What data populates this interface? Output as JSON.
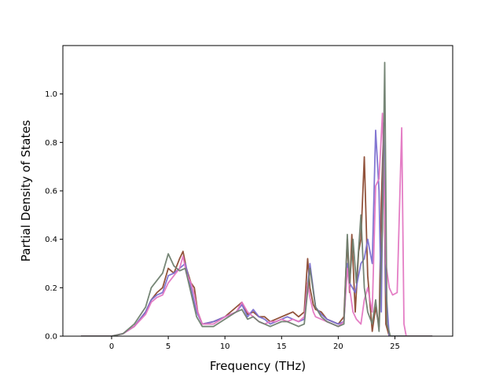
{
  "chart_data": {
    "type": "line",
    "title": "",
    "xlabel": "Frequency (THz)",
    "ylabel": "Partial Density of States",
    "xlim": [
      -4.3,
      30.1
    ],
    "ylim": [
      0.0,
      1.2
    ],
    "xticks": [
      0,
      5,
      10,
      15,
      20,
      25
    ],
    "yticks": [
      0.0,
      0.2,
      0.4,
      0.6,
      0.8,
      1.0
    ],
    "xtick_labels": [
      "0",
      "5",
      "10",
      "15",
      "20",
      "25"
    ],
    "ytick_labels": [
      "0.0",
      "0.2",
      "0.4",
      "0.6",
      "0.8",
      "1.0"
    ],
    "grid": false,
    "legend": null,
    "series": [
      {
        "color": "#8c4a32",
        "x": [
          -2.7,
          0,
          1,
          2,
          3,
          3.5,
          4,
          4.5,
          5,
          5.5,
          6,
          6.3,
          6.6,
          7,
          7.3,
          7.6,
          8,
          9,
          10,
          11,
          11.5,
          12,
          12.5,
          13,
          13.5,
          14,
          14.5,
          15,
          15.5,
          16,
          16.5,
          17,
          17.3,
          17.5,
          17.8,
          18,
          18.5,
          19,
          19.5,
          20,
          20.5,
          20.8,
          21,
          21.2,
          21.5,
          21.8,
          22,
          22.3,
          22.6,
          23,
          23.3,
          23.6,
          23.8,
          24,
          24.2,
          24.5,
          28.3
        ],
        "y": [
          0,
          0,
          0.01,
          0.04,
          0.1,
          0.15,
          0.18,
          0.2,
          0.28,
          0.26,
          0.32,
          0.35,
          0.28,
          0.22,
          0.2,
          0.1,
          0.05,
          0.06,
          0.08,
          0.12,
          0.14,
          0.09,
          0.1,
          0.08,
          0.08,
          0.06,
          0.07,
          0.08,
          0.09,
          0.1,
          0.08,
          0.1,
          0.32,
          0.2,
          0.13,
          0.11,
          0.1,
          0.07,
          0.06,
          0.05,
          0.08,
          0.4,
          0.18,
          0.42,
          0.1,
          0.35,
          0.4,
          0.74,
          0.25,
          0.02,
          0.12,
          0.04,
          0.55,
          0.86,
          0.05,
          0,
          0
        ]
      },
      {
        "color": "#7b6fd0",
        "x": [
          -2.7,
          0,
          1,
          2,
          3,
          3.5,
          4,
          4.5,
          5,
          5.5,
          6,
          6.5,
          7,
          7.5,
          8,
          9,
          10,
          11,
          11.5,
          12,
          12.5,
          13,
          13.5,
          14,
          14.5,
          15,
          15.5,
          16,
          16.5,
          17,
          17.5,
          18,
          18.5,
          19,
          19.5,
          20,
          20.5,
          20.8,
          21,
          21.5,
          22,
          22.3,
          22.6,
          23,
          23.3,
          23.6,
          23.8,
          24,
          24.2,
          24.5,
          25,
          28.3
        ],
        "y": [
          0,
          0,
          0.01,
          0.04,
          0.1,
          0.15,
          0.17,
          0.18,
          0.25,
          0.26,
          0.28,
          0.3,
          0.2,
          0.1,
          0.05,
          0.06,
          0.08,
          0.1,
          0.13,
          0.08,
          0.11,
          0.08,
          0.07,
          0.05,
          0.06,
          0.07,
          0.08,
          0.07,
          0.06,
          0.07,
          0.3,
          0.12,
          0.09,
          0.07,
          0.06,
          0.05,
          0.06,
          0.3,
          0.22,
          0.18,
          0.3,
          0.32,
          0.4,
          0.3,
          0.85,
          0.6,
          0.1,
          0.88,
          0.2,
          0,
          0,
          0
        ]
      },
      {
        "color": "#e377c2",
        "x": [
          -2.7,
          0,
          1,
          2,
          3,
          3.5,
          4,
          4.5,
          5,
          5.5,
          6,
          6.3,
          6.6,
          7,
          7.3,
          7.6,
          8,
          9,
          10,
          11,
          11.5,
          12,
          12.5,
          13,
          13.5,
          14,
          14.5,
          15,
          15.5,
          16,
          16.5,
          17,
          17.3,
          17.5,
          17.8,
          18,
          18.5,
          19,
          19.5,
          20,
          20.5,
          20.8,
          21,
          21.3,
          21.6,
          22,
          22.3,
          22.6,
          23,
          23.3,
          23.6,
          23.9,
          24.2,
          24.5,
          24.8,
          25.2,
          25.6,
          25.8,
          26,
          28.3
        ],
        "y": [
          0,
          0,
          0.01,
          0.04,
          0.09,
          0.14,
          0.16,
          0.17,
          0.22,
          0.25,
          0.28,
          0.33,
          0.26,
          0.22,
          0.17,
          0.1,
          0.05,
          0.05,
          0.08,
          0.1,
          0.14,
          0.1,
          0.08,
          0.06,
          0.05,
          0.06,
          0.06,
          0.07,
          0.06,
          0.07,
          0.06,
          0.08,
          0.22,
          0.16,
          0.1,
          0.08,
          0.07,
          0.06,
          0.05,
          0.04,
          0.06,
          0.28,
          0.2,
          0.1,
          0.07,
          0.05,
          0.15,
          0.2,
          0.1,
          0.62,
          0.65,
          0.92,
          0.3,
          0.2,
          0.17,
          0.18,
          0.86,
          0.05,
          0,
          0
        ]
      },
      {
        "color": "#6f7f6f",
        "x": [
          -2.7,
          0,
          1,
          2,
          3,
          3.5,
          4,
          4.5,
          5,
          5.5,
          6,
          6.5,
          7,
          7.5,
          8,
          9,
          10,
          11,
          11.5,
          12,
          12.5,
          13,
          13.5,
          14,
          14.5,
          15,
          15.5,
          16,
          16.5,
          17,
          17.5,
          18,
          18.5,
          19,
          19.5,
          20,
          20.5,
          20.8,
          21,
          21.3,
          21.6,
          22,
          22.3,
          22.6,
          23,
          23.3,
          23.6,
          23.9,
          24.1,
          24.3,
          24.6,
          28.3
        ],
        "y": [
          0,
          0,
          0.01,
          0.05,
          0.12,
          0.2,
          0.23,
          0.26,
          0.34,
          0.29,
          0.27,
          0.28,
          0.18,
          0.08,
          0.04,
          0.04,
          0.07,
          0.1,
          0.11,
          0.07,
          0.08,
          0.06,
          0.05,
          0.04,
          0.05,
          0.06,
          0.06,
          0.05,
          0.04,
          0.05,
          0.28,
          0.12,
          0.08,
          0.06,
          0.05,
          0.04,
          0.05,
          0.42,
          0.22,
          0.4,
          0.22,
          0.5,
          0.2,
          0.1,
          0.05,
          0.15,
          0.02,
          0.45,
          1.13,
          0.05,
          0,
          0
        ]
      }
    ]
  }
}
